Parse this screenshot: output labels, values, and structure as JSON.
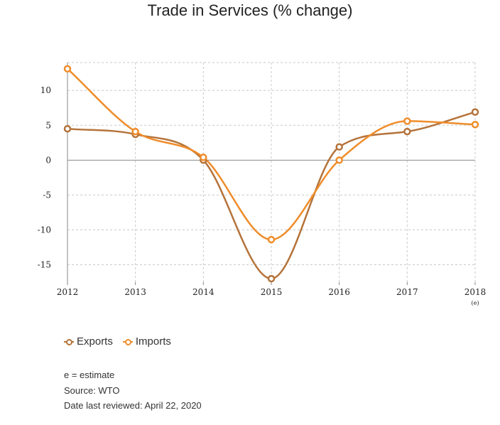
{
  "chart_data": {
    "type": "line",
    "title": "Trade in Services (% change)",
    "categories": [
      "2012",
      "2013",
      "2014",
      "2015",
      "2016",
      "2017",
      "2018"
    ],
    "category_sublabels": [
      "",
      "",
      "",
      "",
      "",
      "",
      "(e)"
    ],
    "series": [
      {
        "name": "Exports",
        "color": "#b5733a",
        "values": [
          4.5,
          3.7,
          0.0,
          -17.0,
          1.9,
          4.1,
          6.9
        ]
      },
      {
        "name": "Imports",
        "color": "#ef8d2b",
        "values": [
          13.1,
          4.1,
          0.4,
          -11.4,
          0.0,
          5.6,
          5.1
        ]
      }
    ],
    "ylim": [
      -17.5,
      14
    ],
    "yticks": [
      10,
      5,
      0,
      -5,
      -10,
      -15
    ],
    "grid": true,
    "legend_position": "bottom-left"
  },
  "notes": {
    "estimate": "e = estimate",
    "source": "Source: WTO",
    "reviewed": "Date last reviewed: April 22, 2020"
  }
}
